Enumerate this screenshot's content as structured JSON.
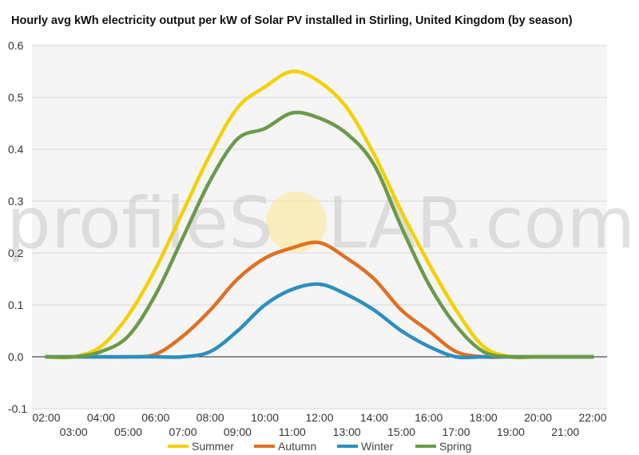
{
  "chart_data": {
    "type": "line",
    "title": "Hourly avg kWh electricity output per kW of Solar PV installed in Stirling, United Kingdom (by season)",
    "xlabel": "",
    "ylabel": "",
    "x": [
      "02:00",
      "03:00",
      "04:00",
      "05:00",
      "06:00",
      "07:00",
      "08:00",
      "09:00",
      "10:00",
      "11:00",
      "12:00",
      "13:00",
      "14:00",
      "15:00",
      "16:00",
      "17:00",
      "18:00",
      "19:00",
      "20:00",
      "21:00",
      "22:00"
    ],
    "ylim": [
      -0.1,
      0.6
    ],
    "yticks": [
      "-0.1",
      "0.0",
      "0.1",
      "0.2",
      "0.3",
      "0.4",
      "0.5",
      "0.6"
    ],
    "grid": true,
    "legend_position": "bottom",
    "series": [
      {
        "name": "Summer",
        "color": "#f5d000",
        "values": [
          0.0,
          0.0,
          0.02,
          0.08,
          0.17,
          0.28,
          0.39,
          0.48,
          0.52,
          0.55,
          0.53,
          0.48,
          0.39,
          0.28,
          0.18,
          0.09,
          0.02,
          0.0,
          0.0,
          0.0,
          0.0
        ]
      },
      {
        "name": "Autumn",
        "color": "#e07020",
        "values": [
          0.0,
          0.0,
          0.0,
          0.0,
          0.005,
          0.04,
          0.09,
          0.15,
          0.19,
          0.21,
          0.22,
          0.19,
          0.15,
          0.09,
          0.05,
          0.01,
          0.0,
          0.0,
          0.0,
          0.0,
          0.0
        ]
      },
      {
        "name": "Winter",
        "color": "#2a8fc0",
        "values": [
          0.0,
          0.0,
          0.0,
          0.0,
          0.0,
          0.0,
          0.01,
          0.05,
          0.1,
          0.13,
          0.14,
          0.12,
          0.09,
          0.05,
          0.02,
          0.0,
          0.0,
          0.0,
          0.0,
          0.0,
          0.0
        ]
      },
      {
        "name": "Spring",
        "color": "#6a9a4a",
        "values": [
          0.0,
          0.0,
          0.01,
          0.04,
          0.12,
          0.23,
          0.34,
          0.42,
          0.44,
          0.47,
          0.46,
          0.43,
          0.37,
          0.25,
          0.14,
          0.06,
          0.01,
          0.0,
          0.0,
          0.0,
          0.0
        ]
      }
    ]
  },
  "watermark": {
    "text_left": "profileS",
    "text_right": "LAR.com"
  }
}
